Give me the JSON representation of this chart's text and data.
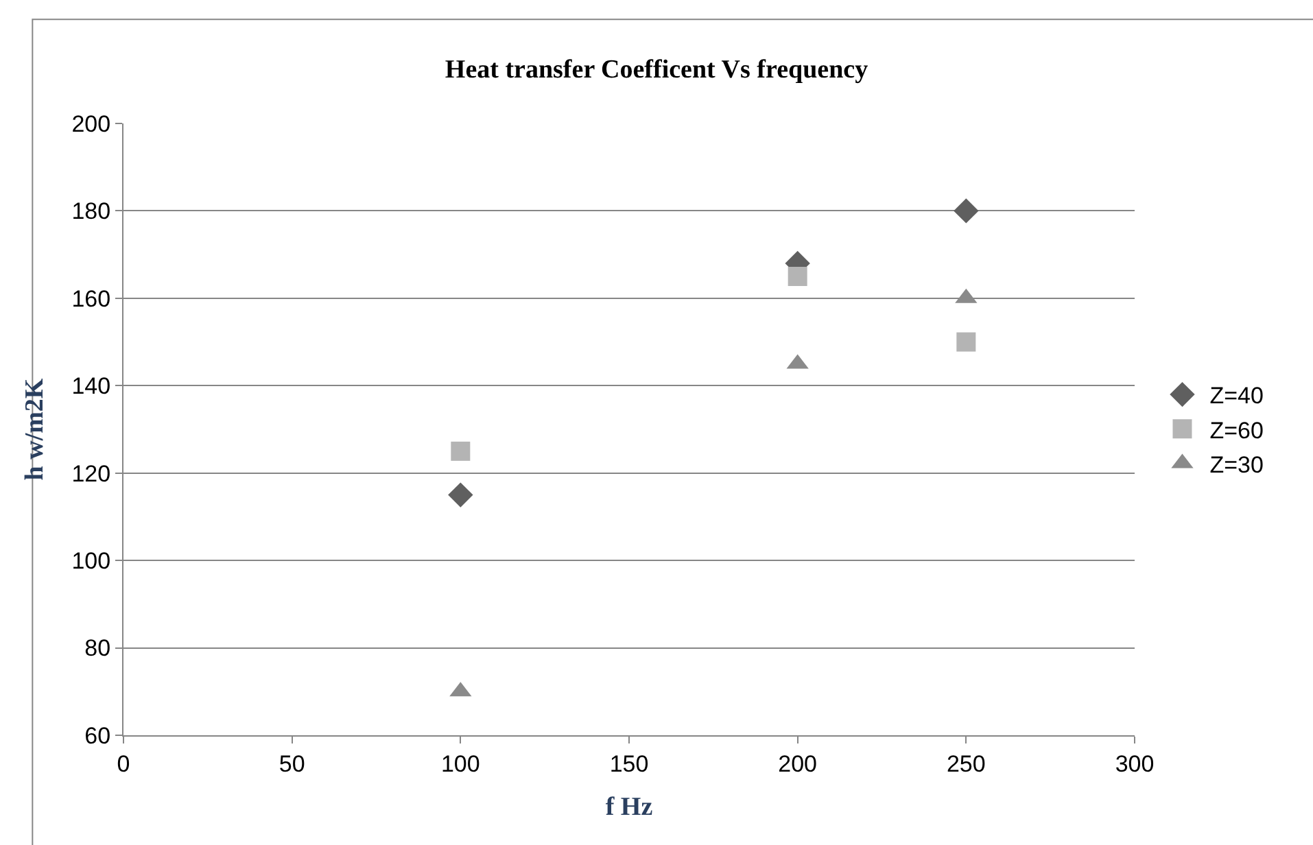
{
  "chart_data": {
    "type": "scatter",
    "title": "Heat transfer Coefficent Vs frequency",
    "xlabel": "f Hz",
    "ylabel": "h w/m2K",
    "x": [
      100,
      200,
      250
    ],
    "series": [
      {
        "name": "Z=40",
        "color": "#5f5f5f",
        "marker": "diamond",
        "values": [
          115,
          168,
          180
        ]
      },
      {
        "name": "Z=60",
        "color": "#b4b4b4",
        "marker": "square",
        "values": [
          125,
          165,
          150
        ]
      },
      {
        "name": "Z=30",
        "color": "#8a8a8a",
        "marker": "triangle",
        "values": [
          70,
          145,
          160
        ]
      }
    ],
    "xlim": [
      0,
      300
    ],
    "xticks": [
      0,
      50,
      100,
      150,
      200,
      250,
      300
    ],
    "ylim": [
      60,
      200
    ],
    "yticks": [
      60,
      80,
      100,
      120,
      140,
      160,
      180,
      200
    ],
    "grid": "y",
    "legend": "right"
  }
}
